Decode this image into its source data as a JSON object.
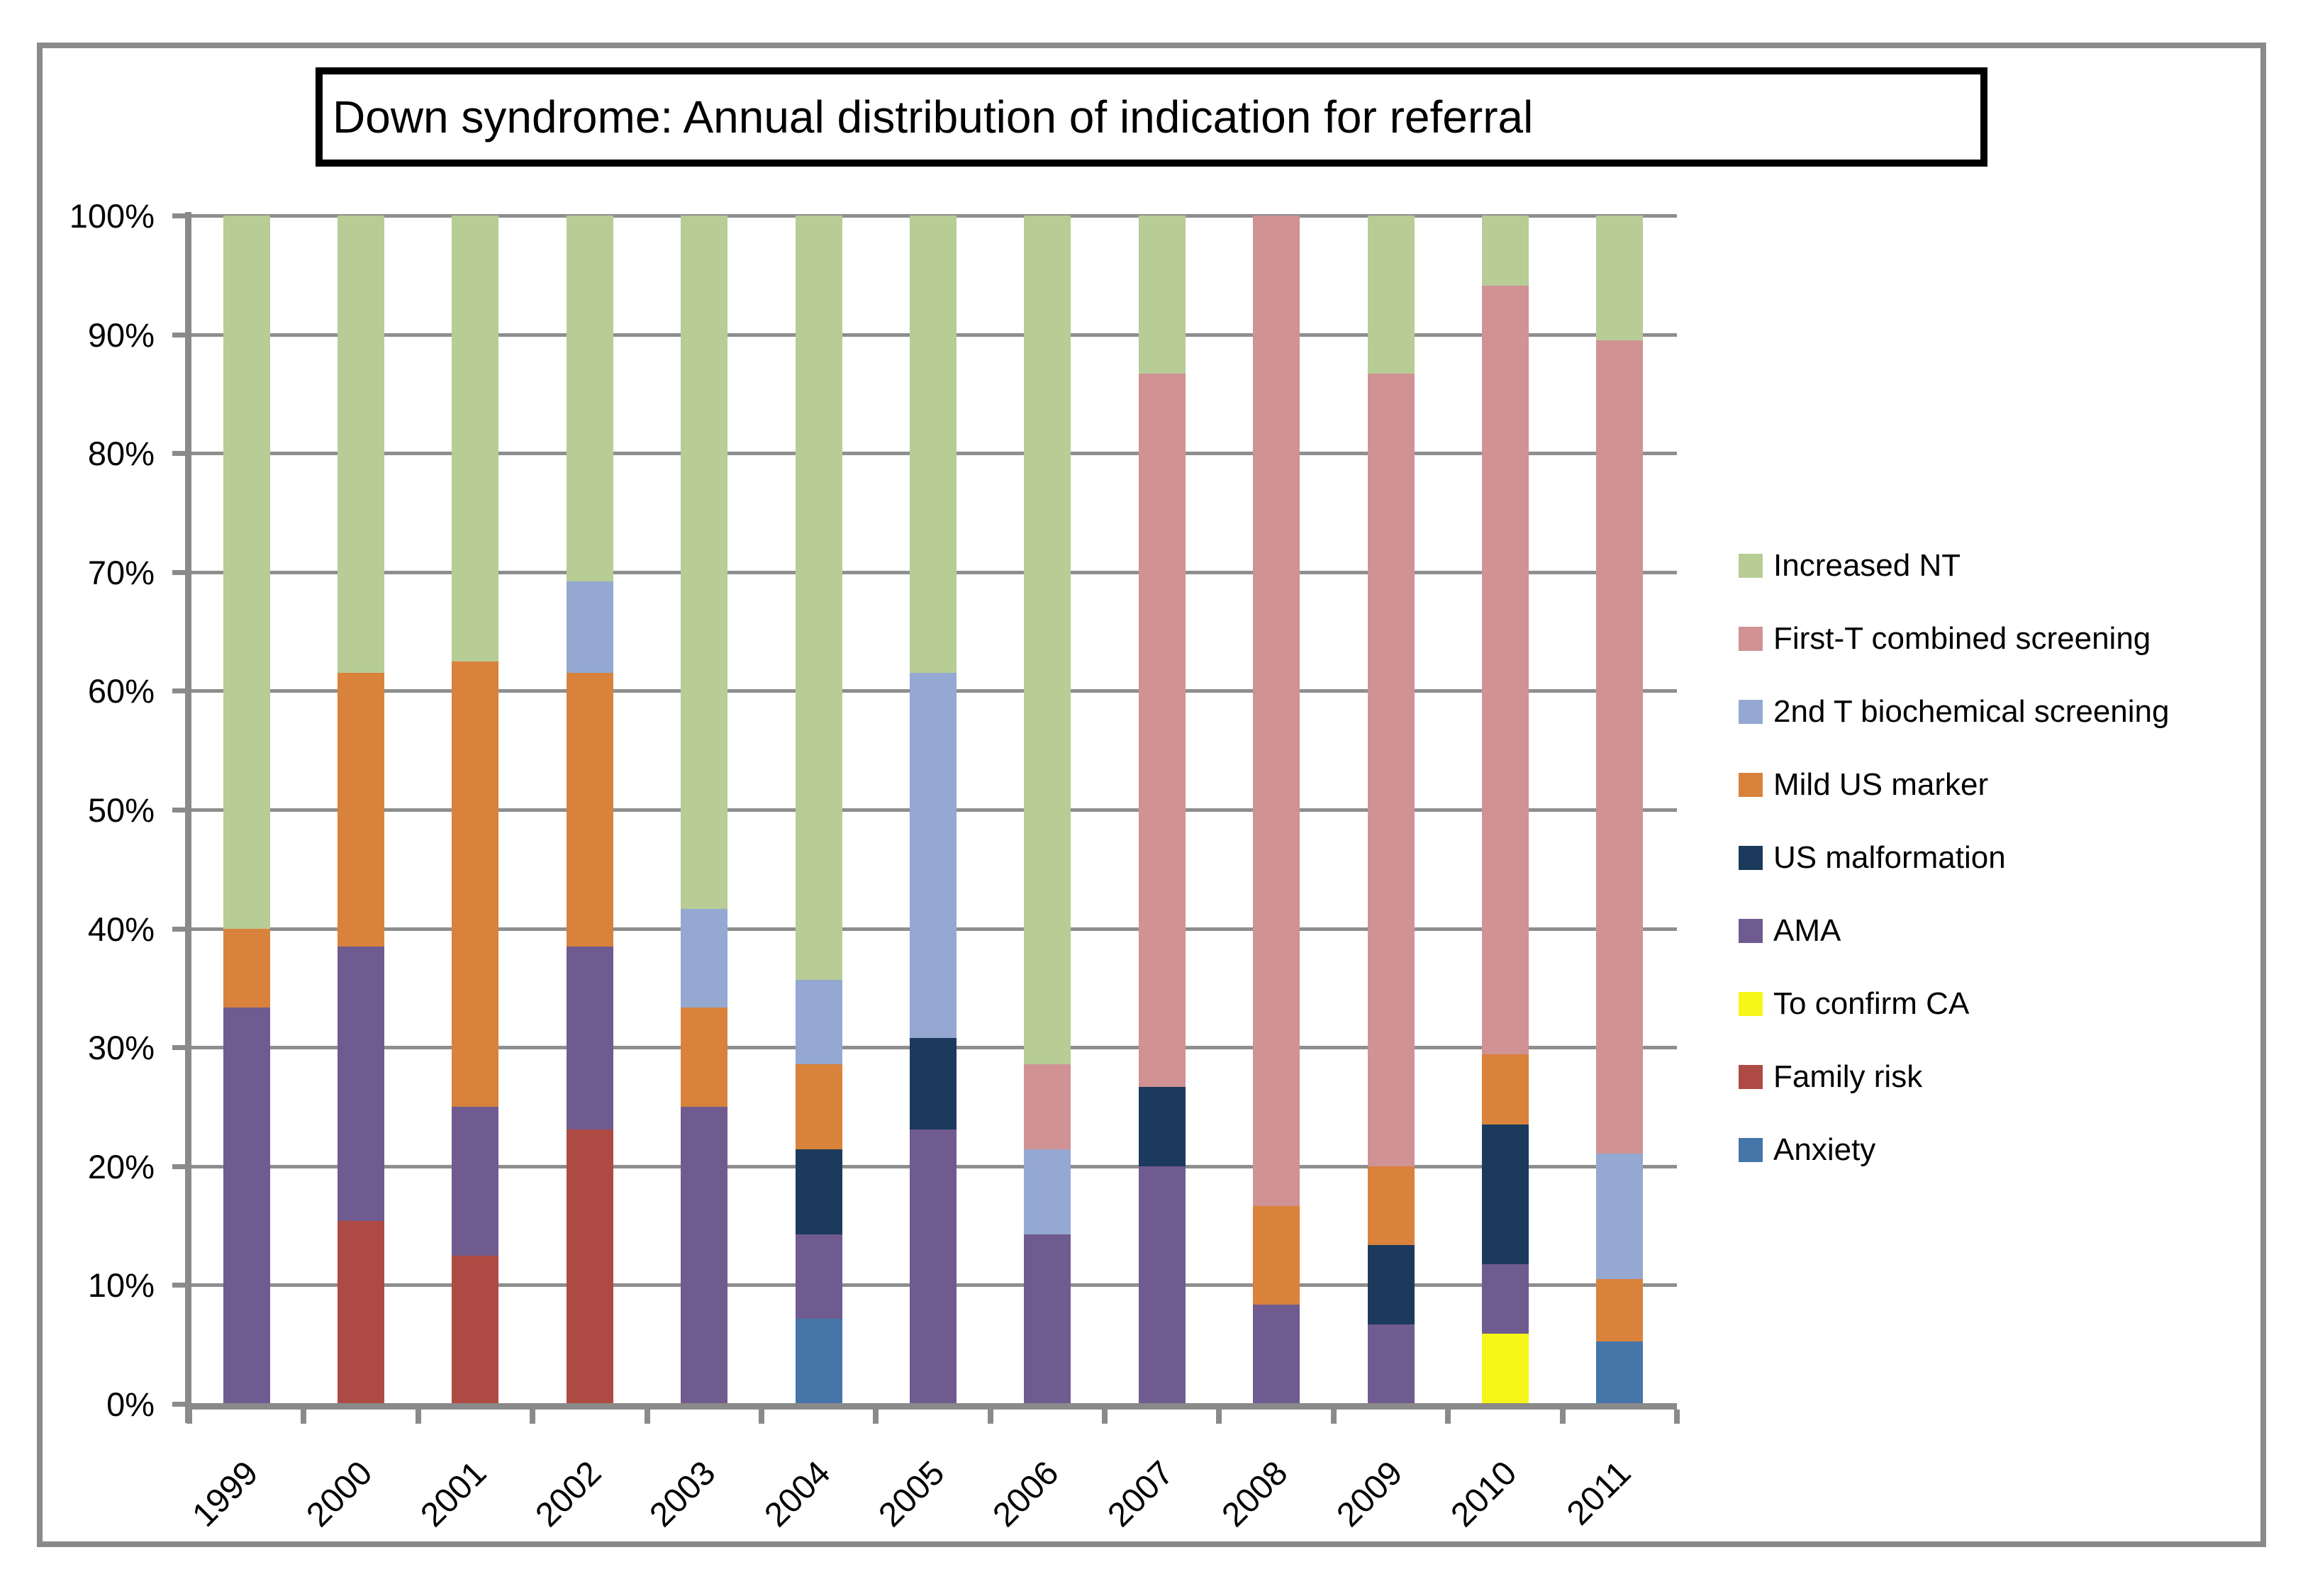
{
  "title": "Down syndrome: Annual distribution of indication for referral",
  "chart_data": {
    "type": "bar",
    "subtype": "100%-stacked-column",
    "title": "Down syndrome: Annual distribution of indication for referral",
    "categories": [
      "1999",
      "2000",
      "2001",
      "2002",
      "2003",
      "2004",
      "2005",
      "2006",
      "2007",
      "2008",
      "2009",
      "2010",
      "2011"
    ],
    "series": [
      {
        "name": "Anxiety",
        "color": "#4575A9",
        "values": [
          0,
          0,
          0,
          0,
          0,
          7.14,
          0,
          0,
          0,
          0,
          0,
          0,
          5.26
        ]
      },
      {
        "name": "Family risk",
        "color": "#AE4A44",
        "values": [
          0,
          15.38,
          12.5,
          23.08,
          0,
          0,
          0,
          0,
          0,
          0,
          0,
          0,
          0
        ]
      },
      {
        "name": "To confirm CA",
        "color": "#F7F619",
        "values": [
          0,
          0,
          0,
          0,
          0,
          0,
          0,
          0,
          0,
          0,
          0,
          5.88,
          0
        ]
      },
      {
        "name": "AMA",
        "color": "#6F5B90",
        "values": [
          33.33,
          23.08,
          12.5,
          15.38,
          25,
          7.14,
          23.08,
          14.29,
          20,
          8.33,
          6.67,
          5.88,
          0
        ]
      },
      {
        "name": "US malformation",
        "color": "#1C3A5C",
        "values": [
          0,
          0,
          0,
          0,
          0,
          7.14,
          7.69,
          0,
          6.67,
          0,
          6.67,
          11.76,
          0
        ]
      },
      {
        "name": "Mild US marker",
        "color": "#D9823C",
        "values": [
          6.67,
          23.08,
          37.5,
          23.08,
          8.33,
          7.14,
          0,
          0,
          0,
          8.33,
          6.67,
          5.88,
          5.26
        ]
      },
      {
        "name": "2nd T biochemical screening",
        "color": "#94A8D1",
        "values": [
          0,
          0,
          0,
          7.69,
          8.33,
          7.14,
          30.77,
          7.14,
          0,
          0,
          0,
          0,
          10.53
        ]
      },
      {
        "name": "First-T combined screening",
        "color": "#D09293",
        "values": [
          0,
          0,
          0,
          0,
          0,
          0,
          0,
          7.14,
          60,
          83.33,
          66.67,
          64.71,
          68.42
        ]
      },
      {
        "name": "Increased NT",
        "color": "#B8CC96",
        "values": [
          60,
          38.46,
          37.5,
          30.77,
          58.33,
          64.29,
          38.46,
          71.43,
          13.33,
          0,
          13.33,
          5.88,
          10.53
        ]
      }
    ],
    "legend_order": [
      "Increased NT",
      "First-T combined screening",
      "2nd T biochemical screening",
      "Mild US marker",
      "US malformation",
      "AMA",
      "To confirm CA",
      "Family risk",
      "Anxiety"
    ],
    "legend_position": "right",
    "yticks": [
      "0%",
      "10%",
      "20%",
      "30%",
      "40%",
      "50%",
      "60%",
      "70%",
      "80%",
      "90%",
      "100%"
    ],
    "ylim": [
      0,
      100
    ],
    "xlabel": "",
    "ylabel": "",
    "grid": true
  },
  "colors": {
    "grid": "#8E8E8E",
    "axis": "#8A8A8A",
    "frame": "#8A8A8A",
    "title_border": "#000000"
  }
}
